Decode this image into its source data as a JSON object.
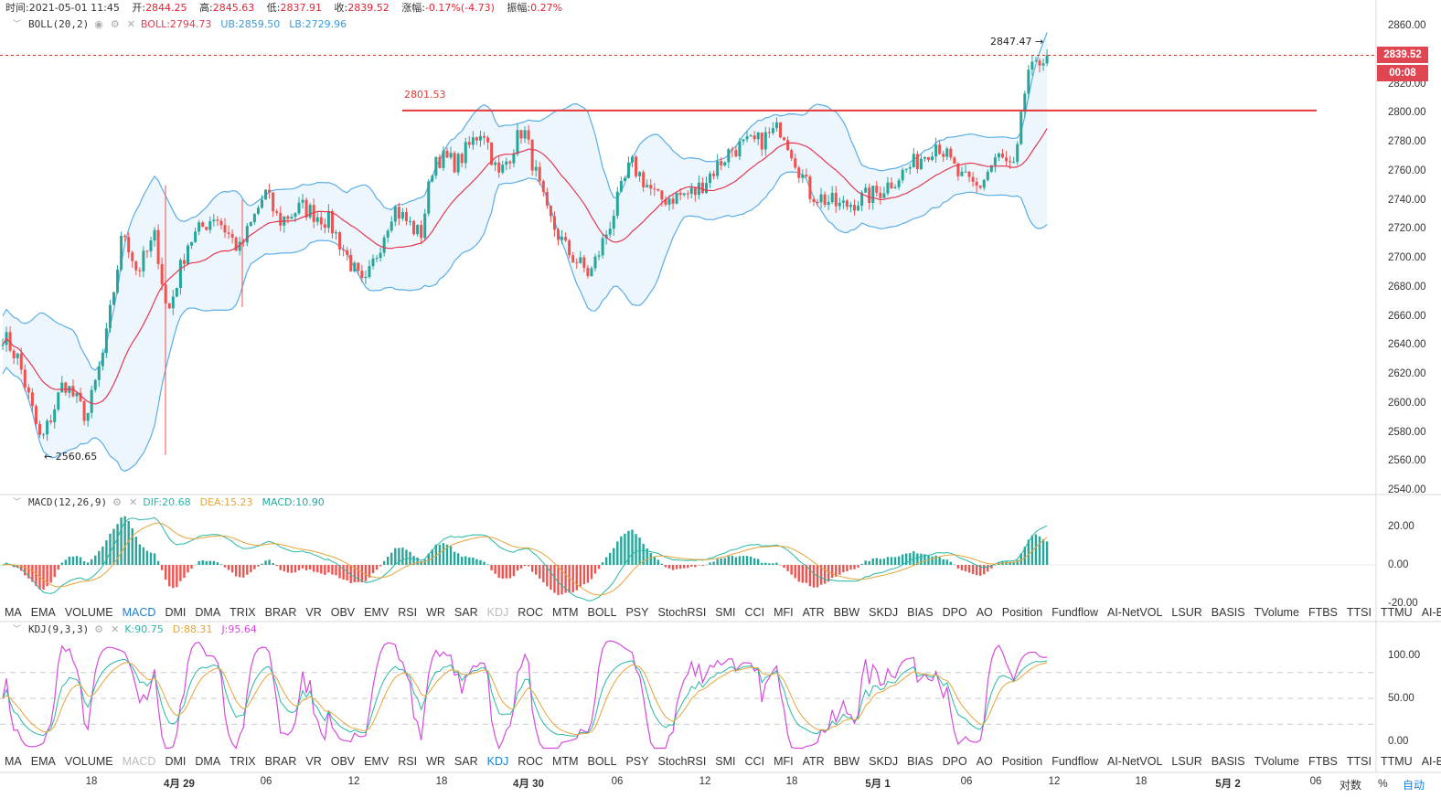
{
  "header": {
    "time_label": "时间:",
    "time": "2021-05-01 11:45",
    "open_label": "开:",
    "open": "2844.25",
    "high_label": "高:",
    "high": "2845.63",
    "low_label": "低:",
    "low": "2837.91",
    "close_label": "收:",
    "close": "2839.52",
    "change_label": "涨幅:",
    "change": "-0.17%(-4.73)",
    "amplitude_label": "振幅:",
    "amplitude": "0.27%"
  },
  "boll": {
    "name": "BOLL(20,2)",
    "mid": "BOLL:2794.73",
    "ub": "UB:2859.50",
    "lb": "LB:2729.96"
  },
  "annotations": {
    "high_label": "2847.47 →",
    "low_label": "← 2560.65",
    "hline_label": "2801.53"
  },
  "price_tag": {
    "price": "2839.52",
    "countdown": "00:08"
  },
  "macd": {
    "name": "MACD(12,26,9)",
    "dif": "DIF:20.68",
    "dea": "DEA:15.23",
    "macd": "MACD:10.90"
  },
  "kdj": {
    "name": "KDJ(9,3,3)",
    "k": "K:90.75",
    "d": "D:88.31",
    "j": "J:95.64"
  },
  "price_axis": [
    "2860.00",
    "2840.00",
    "2820.00",
    "2800.00",
    "2780.00",
    "2760.00",
    "2740.00",
    "2720.00",
    "2700.00",
    "2680.00",
    "2660.00",
    "2640.00",
    "2620.00",
    "2600.00",
    "2580.00",
    "2560.00",
    "2540.00"
  ],
  "macd_axis": [
    "20.00",
    "0.00",
    "-20.00"
  ],
  "kdj_axis": [
    "100.00",
    "50.00",
    "0.00"
  ],
  "indicator_tabs": [
    "MA",
    "EMA",
    "VOLUME",
    "MACD",
    "DMI",
    "DMA",
    "TRIX",
    "BRAR",
    "VR",
    "OBV",
    "EMV",
    "RSI",
    "WR",
    "SAR",
    "KDJ",
    "ROC",
    "MTM",
    "BOLL",
    "PSY",
    "StochRSI",
    "SMI",
    "CCI",
    "MFI",
    "ATR",
    "BBW",
    "SKDJ",
    "BIAS",
    "DPO",
    "AO",
    "Position",
    "Fundflow",
    "AI-NetVOL",
    "LSUR",
    "BASIS",
    "TVolume",
    "FTBS",
    "TTSI",
    "TTMU",
    "AI-BSI"
  ],
  "tabs_row1_active": "MACD",
  "tabs_row1_disabled": "KDJ",
  "tabs_row2_active": "KDJ",
  "tabs_row2_disabled": "MACD",
  "time_axis": [
    "18",
    "4月 29",
    "06",
    "12",
    "18",
    "4月 30",
    "06",
    "12",
    "18",
    "5月 1",
    "06",
    "12",
    "18",
    "5月 2",
    "06"
  ],
  "controls": {
    "log": "对数",
    "percent": "%",
    "auto": "自动"
  },
  "colors": {
    "up": "#26a69a",
    "down": "#ef5350",
    "boll_band": "#5aaee8",
    "boll_mid": "#e53950",
    "hline": "#e53935",
    "price_tag": "#e04552",
    "tab_active": "#1a7fd4",
    "dif": "#26b8a4",
    "dea": "#e5a43a",
    "k": "#26b8a4",
    "d": "#e5a43a",
    "j": "#d54adb"
  }
}
